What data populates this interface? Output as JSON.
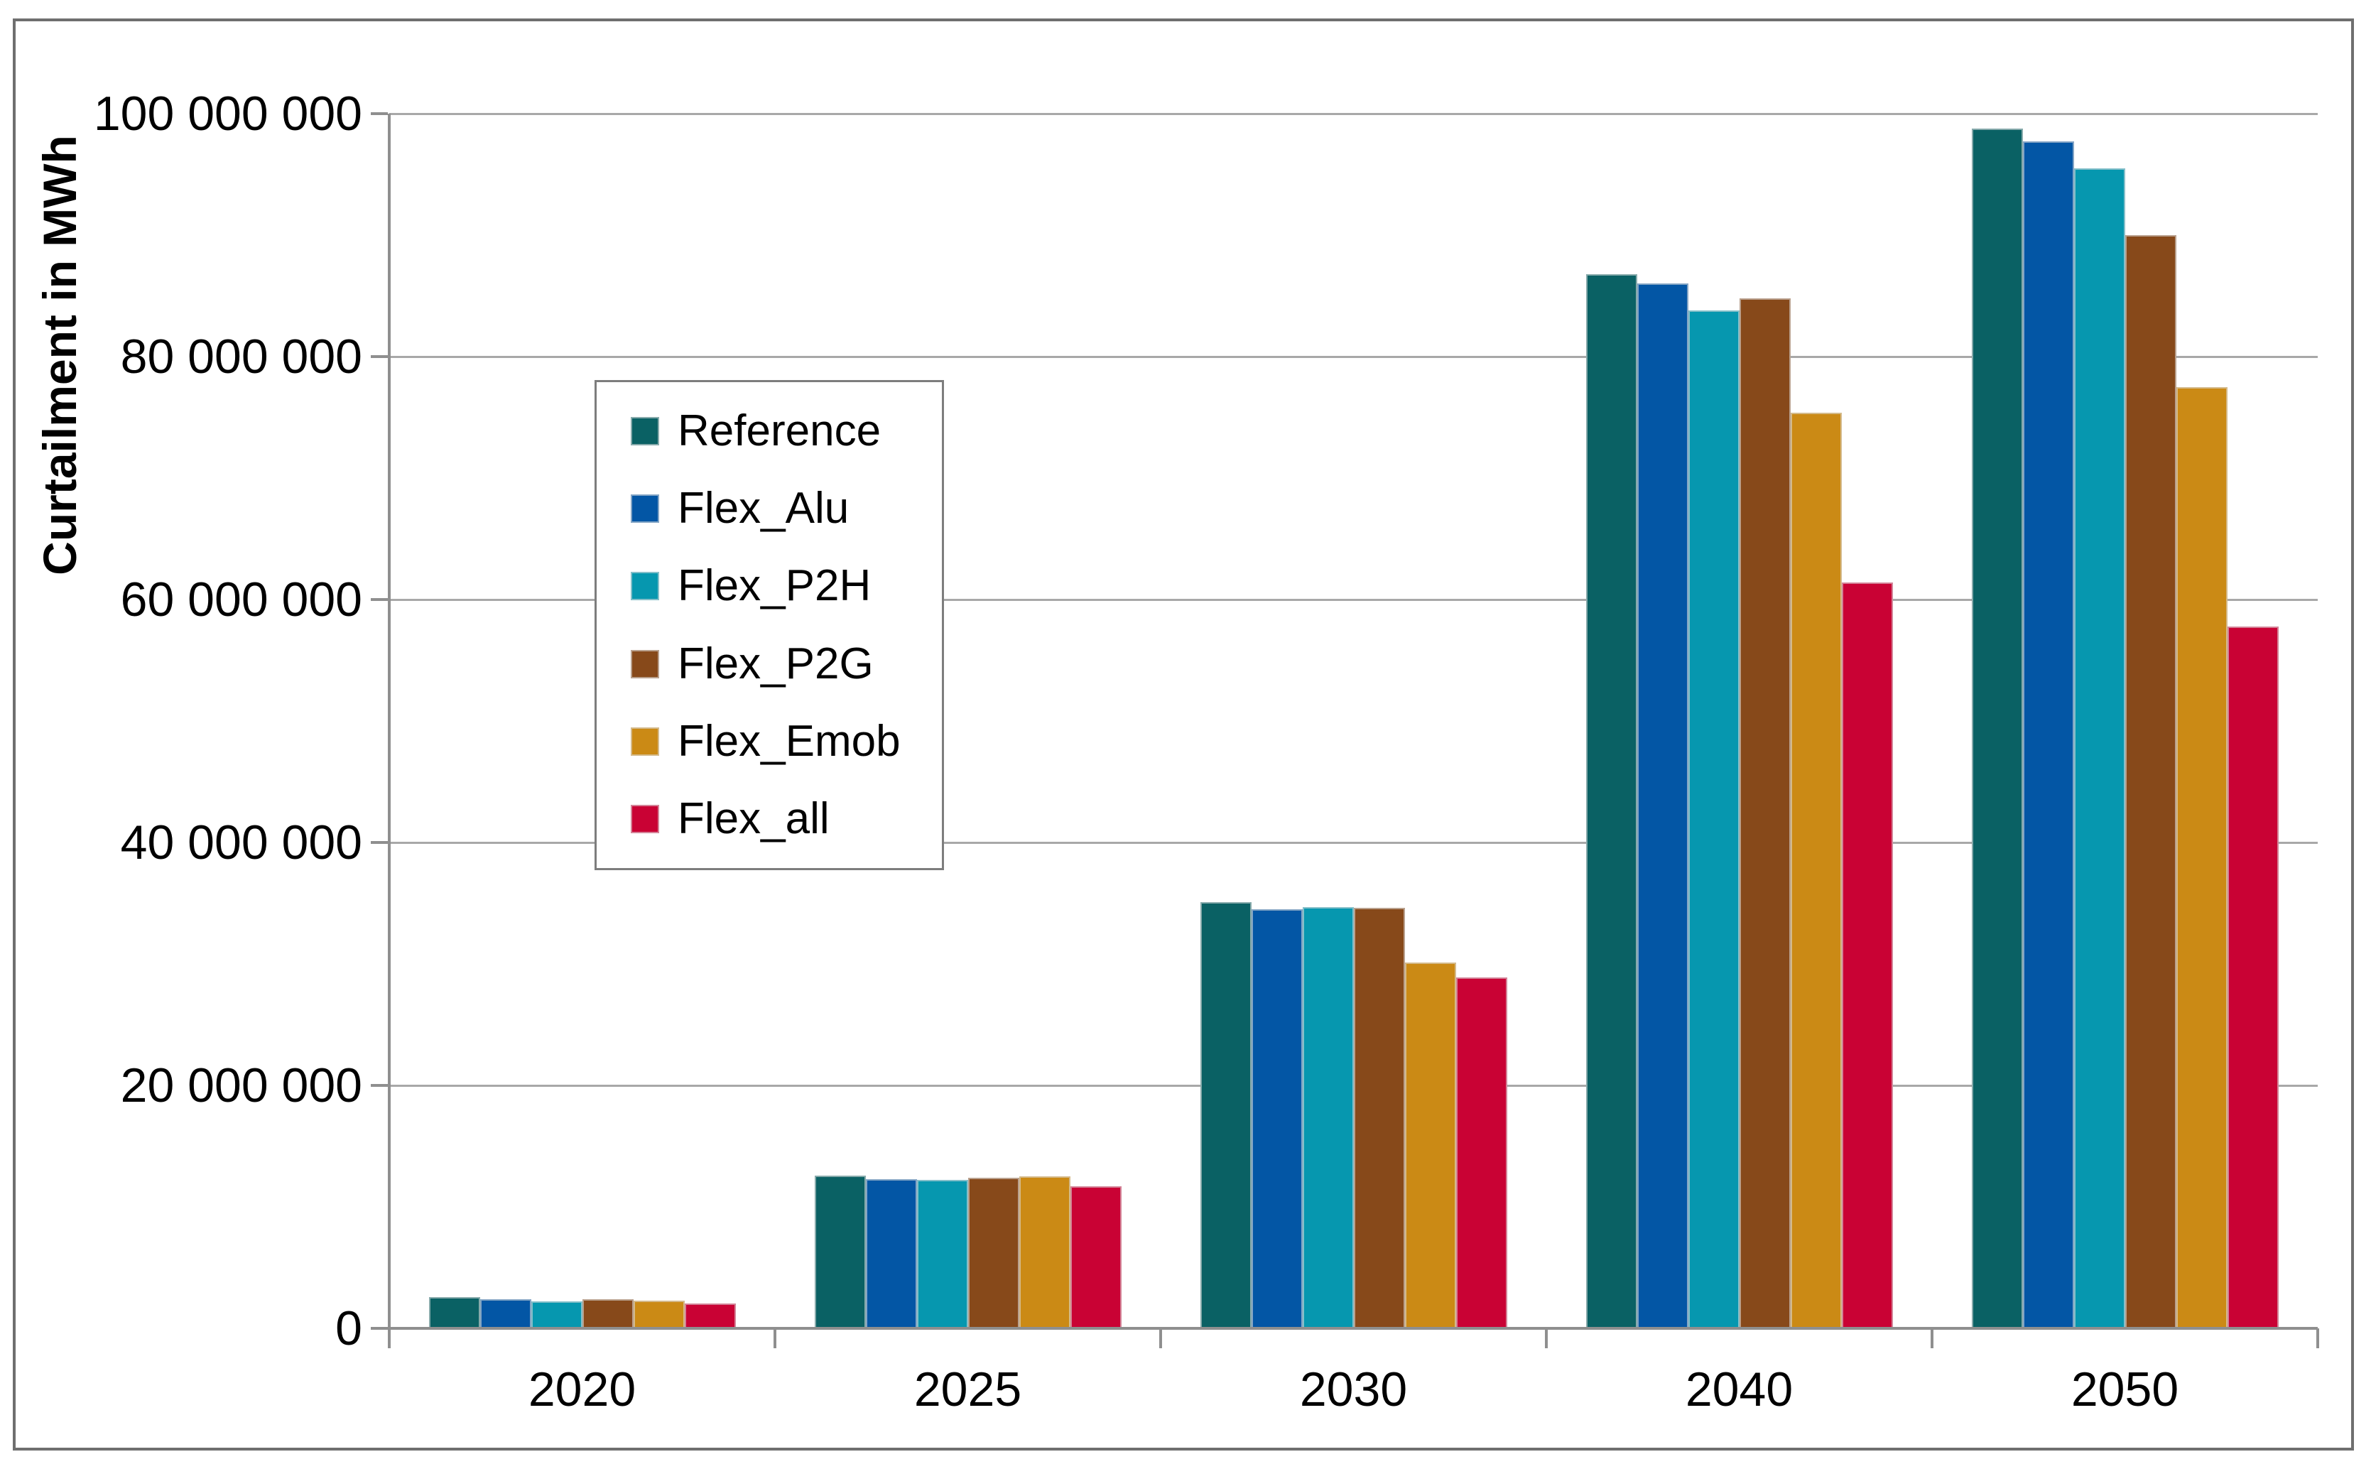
{
  "chart_data": {
    "type": "bar",
    "title": "",
    "ylabel": "Curtailment in MWh",
    "xlabel": "",
    "categories": [
      "2020",
      "2025",
      "2030",
      "2040",
      "2050"
    ],
    "series": [
      {
        "name": "Reference",
        "color": "#0a6164",
        "values": [
          2550000,
          12600000,
          35100000,
          86800000,
          98800000
        ]
      },
      {
        "name": "Flex_Alu",
        "color": "#0356a5",
        "values": [
          2400000,
          12300000,
          34500000,
          86000000,
          97700000
        ]
      },
      {
        "name": "Flex_P2H",
        "color": "#0697af",
        "values": [
          2250000,
          12200000,
          34700000,
          83800000,
          95500000
        ]
      },
      {
        "name": "Flex_P2G",
        "color": "#87491a",
        "values": [
          2400000,
          12400000,
          34600000,
          84800000,
          90000000
        ]
      },
      {
        "name": "Flex_Emob",
        "color": "#cb8a15",
        "values": [
          2300000,
          12500000,
          30100000,
          75400000,
          77500000
        ]
      },
      {
        "name": "Flex_all",
        "color": "#c90234",
        "values": [
          2050000,
          11700000,
          28900000,
          61400000,
          57800000
        ]
      }
    ],
    "ylim": [
      0,
      100000000
    ],
    "ytick_step": 20000000,
    "ytick_labels": [
      "0",
      "20 000 000",
      "40 000 000",
      "60 000 000",
      "80 000 000",
      "100 000 000"
    ],
    "grid": "horizontal-only",
    "legend_position": "inside-upper-left",
    "axis_color": "#8f8f8f",
    "gridline_color": "#a8a8a8",
    "border_color": "#6f6f6f"
  }
}
